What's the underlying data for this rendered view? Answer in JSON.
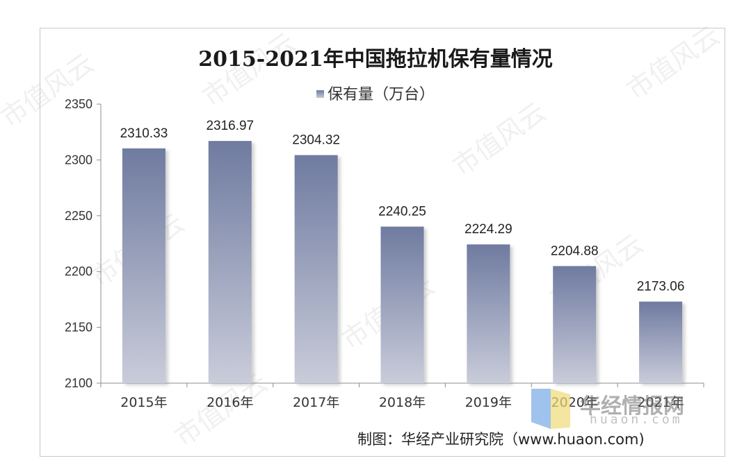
{
  "chart_data": {
    "type": "bar",
    "title": "2015-2021年中国拖拉机保有量情况",
    "categories": [
      "2015年",
      "2016年",
      "2017年",
      "2018年",
      "2019年",
      "2020年",
      "2021年"
    ],
    "series": [
      {
        "name": "保有量（万台）",
        "values": [
          2310.33,
          2316.97,
          2304.32,
          2240.25,
          2224.29,
          2204.88,
          2173.06
        ]
      }
    ],
    "value_labels": [
      "2310.33",
      "2316.97",
      "2304.32",
      "2240.25",
      "2224.29",
      "2204.88",
      "2173.06"
    ],
    "ylim": [
      2100,
      2350
    ],
    "yticks": [
      2100,
      2150,
      2200,
      2250,
      2300,
      2350
    ],
    "xlabel": "",
    "ylabel": "",
    "grid": false,
    "legend": "top-center",
    "colors": {
      "bar_top": "#6f7ba0",
      "bar_bottom": "#c9ccda"
    }
  },
  "credit": "制图：华经产业研究院（www.huaon.com)",
  "logo": {
    "name": "华经情报网",
    "domain": "huaon.com"
  },
  "watermark": "市值风云"
}
